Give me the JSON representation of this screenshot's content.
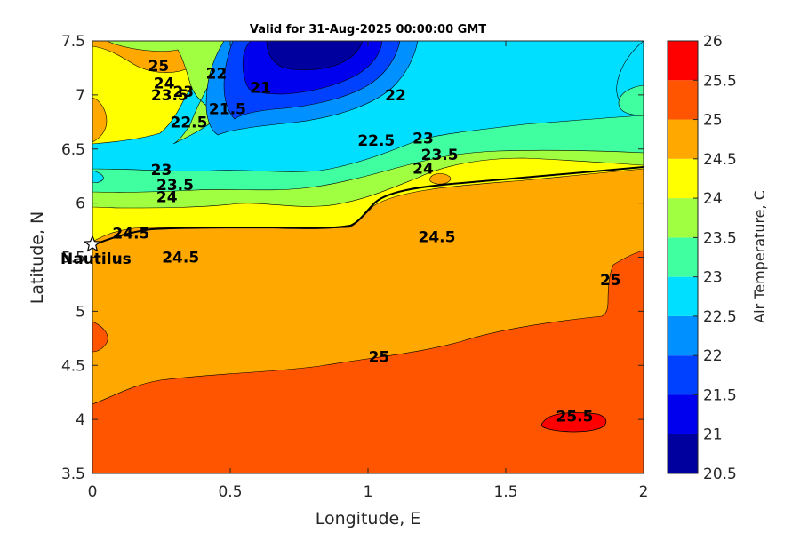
{
  "chart_data": {
    "type": "contour",
    "title": "Valid for 31-Aug-2025 00:00:00 GMT",
    "xlabel": "Longitude, E",
    "ylabel": "Latitude, N",
    "colorbar_label": "Air Temperature, C",
    "xlim": [
      0,
      2
    ],
    "ylim": [
      3.5,
      7.5
    ],
    "xticks": [
      "0",
      "0.5",
      "1",
      "1.5",
      "2"
    ],
    "xtick_values": [
      0,
      0.5,
      1,
      1.5,
      2
    ],
    "yticks": [
      "3.5",
      "4",
      "4.5",
      "5",
      "5.5",
      "6",
      "6.5",
      "7",
      "7.5"
    ],
    "ytick_values": [
      3.5,
      4,
      4.5,
      5,
      5.5,
      6,
      6.5,
      7,
      7.5
    ],
    "colorbar_ticks": [
      "20.5",
      "21",
      "21.5",
      "22",
      "22.5",
      "23",
      "23.5",
      "24",
      "24.5",
      "25",
      "25.5",
      "26"
    ],
    "levels": [
      20.5,
      21,
      21.5,
      22,
      22.5,
      23,
      23.5,
      24,
      24.5,
      25,
      25.5,
      26
    ],
    "level_colors": [
      "#00009f",
      "#0000ef",
      "#0040ff",
      "#0090ff",
      "#00dfff",
      "#40ffa0",
      "#a0ff40",
      "#ffff00",
      "#ffa800",
      "#ff5500",
      "#ff0000",
      "#a00000"
    ],
    "contour_labels": [
      {
        "text": "25",
        "lon": 0.24,
        "lat": 7.27
      },
      {
        "text": "24",
        "lon": 0.26,
        "lat": 7.11
      },
      {
        "text": "23.5",
        "lon": 0.28,
        "lat": 7.0
      },
      {
        "text": "23",
        "lon": 0.33,
        "lat": 7.03
      },
      {
        "text": "22",
        "lon": 0.45,
        "lat": 7.2
      },
      {
        "text": "22.5",
        "lon": 0.35,
        "lat": 6.75
      },
      {
        "text": "21.5",
        "lon": 0.49,
        "lat": 6.87
      },
      {
        "text": "21",
        "lon": 0.61,
        "lat": 7.07
      },
      {
        "text": "22",
        "lon": 1.1,
        "lat": 7.0
      },
      {
        "text": "22.5",
        "lon": 1.03,
        "lat": 6.58
      },
      {
        "text": "23",
        "lon": 1.2,
        "lat": 6.6
      },
      {
        "text": "23.5",
        "lon": 1.26,
        "lat": 6.45
      },
      {
        "text": "24",
        "lon": 1.2,
        "lat": 6.32
      },
      {
        "text": "23",
        "lon": 0.25,
        "lat": 6.31
      },
      {
        "text": "23.5",
        "lon": 0.3,
        "lat": 6.17
      },
      {
        "text": "24",
        "lon": 0.27,
        "lat": 6.06
      },
      {
        "text": "24.5",
        "lon": 0.14,
        "lat": 5.72
      },
      {
        "text": "24.5",
        "lon": 0.32,
        "lat": 5.5
      },
      {
        "text": "24.5",
        "lon": 1.25,
        "lat": 5.69
      },
      {
        "text": "25",
        "lon": 1.04,
        "lat": 4.58
      },
      {
        "text": "25",
        "lon": 1.88,
        "lat": 5.29
      },
      {
        "text": "25.5",
        "lon": 1.75,
        "lat": 4.03
      }
    ],
    "marker": {
      "label": "Nautilus",
      "lon": 0.0,
      "lat": 5.62,
      "symbol": "star"
    },
    "grid": false
  }
}
